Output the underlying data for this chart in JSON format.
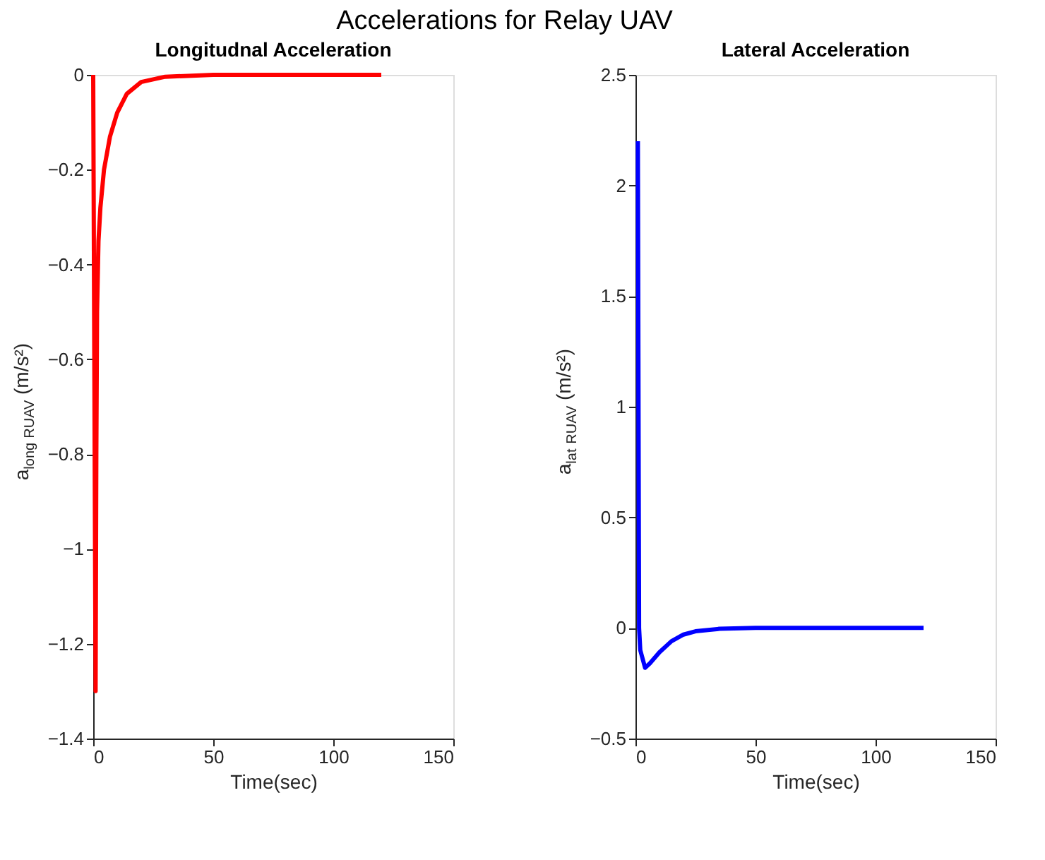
{
  "chart_data": [
    {
      "type": "line",
      "title": "Longitudnal Acceleration",
      "xlabel": "Time(sec)",
      "ylabel": "a$_{long}$$_{RUAV}$ (m/s²)",
      "annotations": [
        "Accelerations for Relay UAV"
      ],
      "xlim": [
        0,
        150
      ],
      "xticks": [
        0,
        50,
        100,
        150
      ],
      "ylim": [
        -1.4,
        0
      ],
      "yticks": [
        -1.4,
        -1.2,
        -1,
        -0.8,
        -0.6,
        -0.4,
        -0.2,
        0
      ],
      "grid": false,
      "marker": "none",
      "line_style": "solid",
      "series": [
        {
          "color": "#ff0000",
          "x": [
            0,
            1,
            1.3,
            1.6,
            2.2,
            3,
            4.5,
            7,
            10,
            14,
            20,
            30,
            50,
            120
          ],
          "values": [
            0,
            -1.3,
            -0.8,
            -0.5,
            -0.35,
            -0.28,
            -0.2,
            -0.13,
            -0.08,
            -0.04,
            -0.015,
            -0.004,
            0,
            0
          ]
        }
      ]
    },
    {
      "type": "line",
      "title": "Lateral Acceleration",
      "xlabel": "Time(sec)",
      "ylabel": "a$_{lat}$$_{RUAV}$ (m/s²)",
      "xlim": [
        0,
        150
      ],
      "xticks": [
        0,
        50,
        100,
        150
      ],
      "ylim": [
        -0.5,
        2.5
      ],
      "yticks": [
        -0.5,
        0,
        0.5,
        1,
        1.5,
        2,
        2.5
      ],
      "grid": false,
      "marker": "none",
      "line_style": "solid",
      "series": [
        {
          "color": "#0000ff",
          "x": [
            1,
            1.5,
            2,
            4,
            6,
            10,
            15,
            20,
            25,
            35,
            50,
            120
          ],
          "values": [
            2.2,
            0,
            -0.1,
            -0.18,
            -0.16,
            -0.11,
            -0.06,
            -0.03,
            -0.015,
            -0.004,
            0,
            0
          ]
        }
      ]
    }
  ]
}
